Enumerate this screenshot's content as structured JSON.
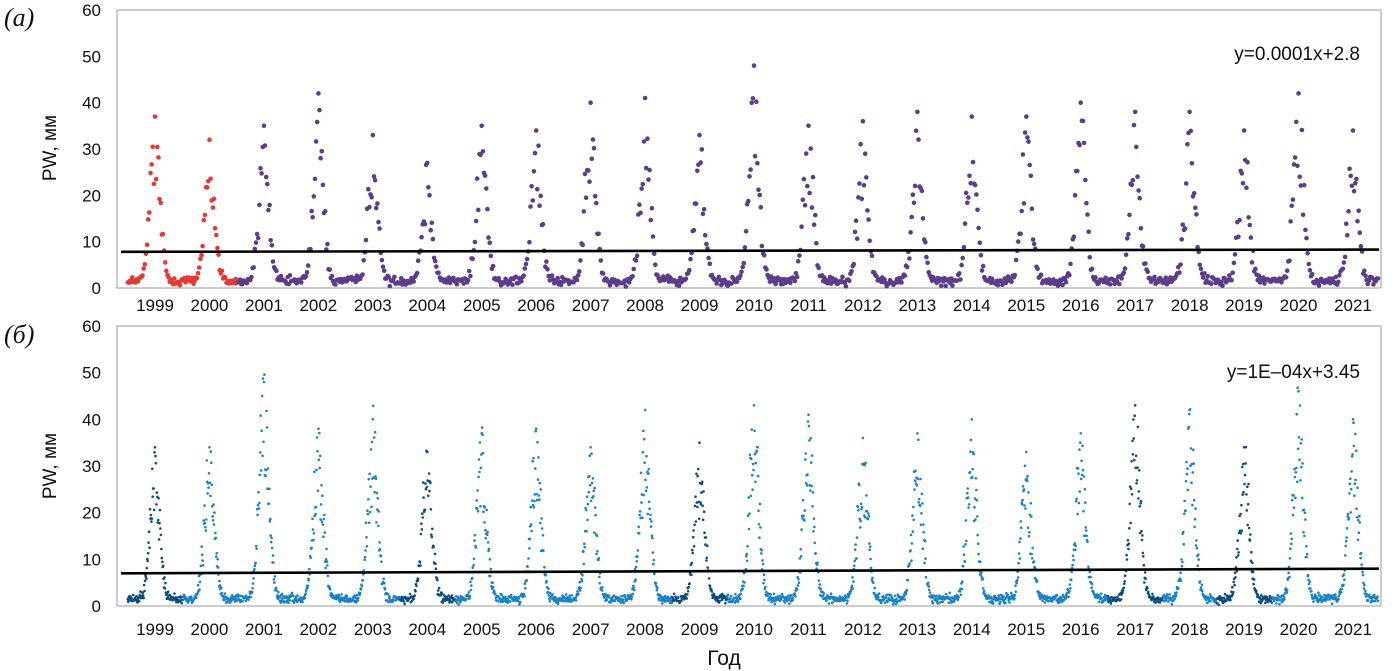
{
  "chart_data": [
    {
      "type": "scatter",
      "panel_label": "(a)",
      "panel_letter": "а",
      "title": "",
      "xlabel": "",
      "ylabel": "PW, мм",
      "ylim": [
        0,
        60
      ],
      "yticks": [
        0,
        10,
        20,
        30,
        40,
        50,
        60
      ],
      "categories": [
        "1999",
        "2000",
        "2001",
        "2002",
        "2003",
        "2004",
        "2005",
        "2006",
        "2007",
        "2008",
        "2009",
        "2010",
        "2011",
        "2012",
        "2013",
        "2014",
        "2015",
        "2016",
        "2017",
        "2018",
        "2019",
        "2020",
        "2021"
      ],
      "annual_peak_values": [
        37,
        32,
        35,
        42,
        33,
        27,
        35,
        34,
        40,
        41,
        33,
        48,
        35,
        36,
        38,
        37,
        37,
        40,
        38,
        38,
        34,
        42,
        34
      ],
      "seasonal_baseline": 1.5,
      "series": [
        {
          "name": "main",
          "color": "#5b3d8a",
          "years": "2000–2021"
        },
        {
          "name": "highlighted",
          "color": "#e53935",
          "years": "1999–2000"
        }
      ],
      "trendline": {
        "equation": "y=0.0001x+2.8",
        "y_start": 7.8,
        "y_end": 8.3,
        "color": "#000000"
      },
      "grid": false,
      "legend": "none"
    },
    {
      "type": "scatter",
      "panel_label": "(б)",
      "panel_letter": "б",
      "title": "",
      "xlabel": "Год",
      "ylabel": "PW, мм",
      "ylim": [
        0,
        60
      ],
      "yticks": [
        0,
        10,
        20,
        30,
        40,
        50,
        60
      ],
      "categories": [
        "1999",
        "2000",
        "2001",
        "2002",
        "2003",
        "2004",
        "2005",
        "2006",
        "2007",
        "2008",
        "2009",
        "2010",
        "2011",
        "2012",
        "2013",
        "2014",
        "2015",
        "2016",
        "2017",
        "2018",
        "2019",
        "2020",
        "2021"
      ],
      "annual_peak_values": [
        34,
        34,
        48,
        38,
        40,
        33,
        37,
        38,
        34,
        42,
        35,
        43,
        41,
        36,
        37,
        40,
        33,
        37,
        43,
        42,
        34,
        46,
        40
      ],
      "highlighted_years": [
        "1999",
        "2004",
        "2009",
        "2017",
        "2019"
      ],
      "seasonal_baseline": 1.5,
      "series": [
        {
          "name": "main",
          "color": "#1a82c4"
        },
        {
          "name": "highlighted",
          "color": "#0b4d7e"
        }
      ],
      "trendline": {
        "equation": "y=1E–04x+3.45",
        "y_start": 7.0,
        "y_end": 8.0,
        "color": "#000000"
      },
      "grid": false,
      "legend": "none"
    }
  ]
}
